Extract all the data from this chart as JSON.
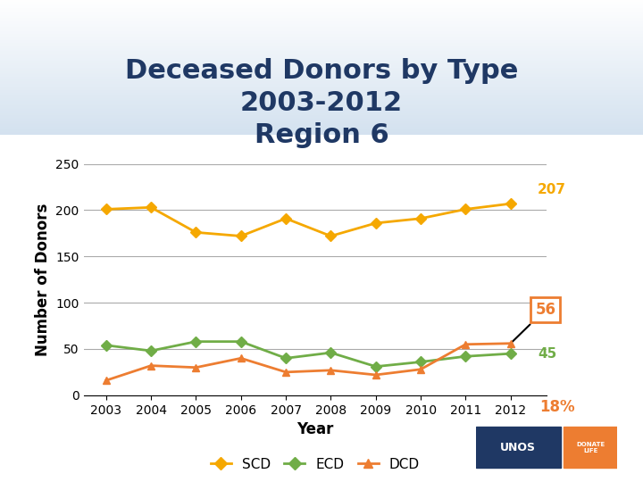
{
  "title": "Deceased Donors by Type\n2003-2012\nRegion 6",
  "xlabel": "Year",
  "ylabel": "Number of Donors",
  "years": [
    2003,
    2004,
    2005,
    2006,
    2007,
    2008,
    2009,
    2010,
    2011,
    2012
  ],
  "SCD": [
    201,
    203,
    176,
    172,
    191,
    172,
    186,
    191,
    201,
    207
  ],
  "ECD": [
    54,
    48,
    58,
    58,
    40,
    46,
    31,
    36,
    42,
    45
  ],
  "DCD": [
    16,
    32,
    30,
    40,
    25,
    27,
    22,
    28,
    55,
    56
  ],
  "SCD_color": "#F5A800",
  "ECD_color": "#70AD47",
  "DCD_color": "#ED7D31",
  "ylim": [
    0,
    250
  ],
  "yticks": [
    0,
    50,
    100,
    150,
    200,
    250
  ],
  "label_207_color": "#F5A800",
  "label_45_color": "#70AD47",
  "label_56_color": "#ED7D31",
  "label_18pct_color": "#ED7D31",
  "bg_top_color": "#C9D9F0",
  "title_color": "#1F3864",
  "title_fontsize": 22,
  "axis_fontsize": 12,
  "legend_fontsize": 11,
  "grid_color": "#AAAAAA"
}
